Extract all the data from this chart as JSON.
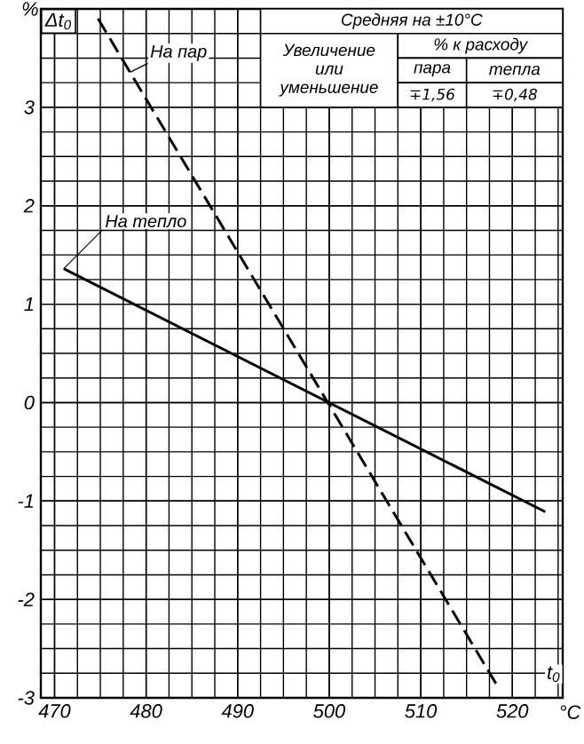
{
  "chart_data": {
    "type": "line",
    "xlabel": "t$_{0}$",
    "ylabel": "Δt$_{0}$",
    "xlim": [
      468.5,
      525.5
    ],
    "ylim": [
      -3,
      4
    ],
    "xticks": [
      470,
      480,
      490,
      500,
      510,
      520
    ],
    "yticks": [
      -3,
      -2,
      -1,
      0,
      1,
      2,
      3
    ],
    "grid": true,
    "series": [
      {
        "name": "На пар",
        "color": "#000000",
        "line_style": "dashed",
        "x": [
          474.75,
          518.5
        ],
        "values": [
          3.9,
          -2.9
        ]
      },
      {
        "name": "На тепло",
        "color": "#000000",
        "line_style": "solid",
        "x": [
          471,
          523.6
        ],
        "values": [
          1.36,
          -1.11
        ]
      }
    ],
    "annotations": [
      "%",
      "°C",
      "Средняя на ±10°C",
      "Увеличение или уменьшение",
      "% к расходу",
      "пара",
      "тепла",
      "∓1,56",
      "∓0,48"
    ]
  }
}
